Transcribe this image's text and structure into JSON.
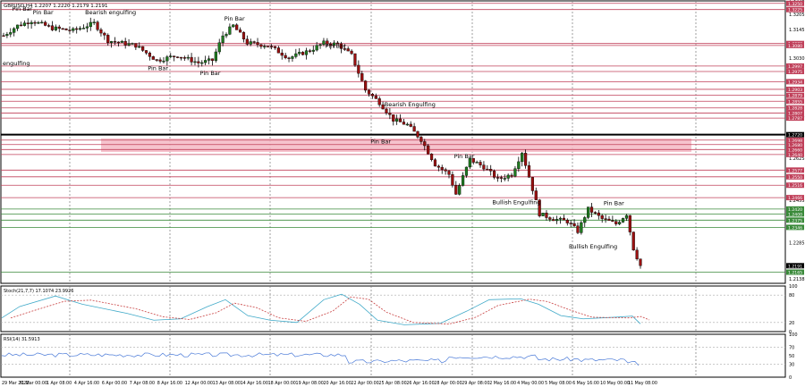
{
  "header": {
    "symbol": "GBPUSD,H4",
    "ohlc": "1.2207 1.2220 1.2179 1.2191"
  },
  "colors": {
    "bull": "#1f7a1f",
    "bear": "#9b1010",
    "frame": "#000000",
    "zone": "#f5b8c4",
    "hline_red": "#c0405a",
    "hline_green": "#3a8a3a",
    "stoch_main": "#3fa9c8",
    "stoch_signal": "#c84040",
    "rsi_line": "#4a7ad8"
  },
  "price_axis": {
    "labels": [
      "1.3225",
      "1.3205",
      "1.3145",
      "1.3030",
      "1.2795",
      "1.2625",
      "1.2455",
      "1.2285",
      "1.2138"
    ],
    "tags": [
      {
        "price": 1.325,
        "text": "1.3250",
        "kind": "red"
      },
      {
        "price": 1.3225,
        "text": "1.3225",
        "kind": "red"
      },
      {
        "price": 1.3088,
        "text": "1.3088",
        "kind": "red"
      },
      {
        "price": 1.308,
        "text": "1.3080",
        "kind": "red"
      },
      {
        "price": 1.2997,
        "text": "1.2997",
        "kind": "red"
      },
      {
        "price": 1.2975,
        "text": "1.2975",
        "kind": "red"
      },
      {
        "price": 1.2934,
        "text": "1.2934",
        "kind": "red"
      },
      {
        "price": 1.2903,
        "text": "1.2903",
        "kind": "red"
      },
      {
        "price": 1.2879,
        "text": "1.2879",
        "kind": "red"
      },
      {
        "price": 1.2855,
        "text": "1.2855",
        "kind": "red"
      },
      {
        "price": 1.2828,
        "text": "1.2828",
        "kind": "red"
      },
      {
        "price": 1.2807,
        "text": "1.2807",
        "kind": "red"
      },
      {
        "price": 1.2787,
        "text": "1.2787",
        "kind": "red"
      },
      {
        "price": 1.272,
        "text": "1.2720",
        "kind": "black"
      },
      {
        "price": 1.2698,
        "text": "1.2698",
        "kind": "red"
      },
      {
        "price": 1.268,
        "text": "1.2680",
        "kind": "red"
      },
      {
        "price": 1.266,
        "text": "1.2660",
        "kind": "red"
      },
      {
        "price": 1.264,
        "text": "1.2640",
        "kind": "red"
      },
      {
        "price": 1.2577,
        "text": "1.2577",
        "kind": "red"
      },
      {
        "price": 1.255,
        "text": "1.2550",
        "kind": "red"
      },
      {
        "price": 1.2516,
        "text": "1.2516",
        "kind": "red"
      },
      {
        "price": 1.2466,
        "text": "1.2466",
        "kind": "red"
      },
      {
        "price": 1.242,
        "text": "1.2420",
        "kind": "green"
      },
      {
        "price": 1.24,
        "text": "1.2400",
        "kind": "green"
      },
      {
        "price": 1.2375,
        "text": "1.2375",
        "kind": "green"
      },
      {
        "price": 1.2346,
        "text": "1.2346",
        "kind": "green"
      },
      {
        "price": 1.2191,
        "text": "1.2191",
        "kind": "black"
      },
      {
        "price": 1.2165,
        "text": "1.2165",
        "kind": "green"
      }
    ]
  },
  "annotations": [
    {
      "text": "Pin Bar",
      "price": 1.322,
      "bar": 5
    },
    {
      "text": "Pin Bar",
      "price": 1.3205,
      "bar": 11
    },
    {
      "text": "Bearish engulfing",
      "price": 1.3205,
      "bar": 26
    },
    {
      "text": "engulfing",
      "price": 1.3,
      "bar": 0
    },
    {
      "text": "Pin Bar",
      "price": 1.318,
      "bar": 66
    },
    {
      "text": "Pin Bar",
      "price": 1.298,
      "bar": 44
    },
    {
      "text": "Pin Bar",
      "price": 1.296,
      "bar": 59
    },
    {
      "text": "Pin Bar",
      "price": 1.307,
      "bar": 95
    },
    {
      "text": "Bearish Engulfing",
      "price": 1.2835,
      "bar": 112
    },
    {
      "text": "Pin Bar",
      "price": 1.2685,
      "bar": 108
    },
    {
      "text": "Pin Bar",
      "price": 1.2625,
      "bar": 132
    },
    {
      "text": "Bullish Engulfing",
      "price": 1.244,
      "bar": 143
    },
    {
      "text": "Pin Bar",
      "price": 1.2435,
      "bar": 175
    },
    {
      "text": "Bullish Engulfing",
      "price": 1.226,
      "bar": 165
    }
  ],
  "stoch": {
    "label": "Stoch(21,7,7) 17.1074 23.9926",
    "axis": [
      "100",
      "80",
      "20",
      "0"
    ]
  },
  "rsi": {
    "label": "RSI(14) 31.5913",
    "axis": [
      "100",
      "70",
      "50",
      "30",
      "0"
    ]
  },
  "time_axis": [
    "29 Mar 2022",
    "31 Mar 00:00",
    "1 Apr 08:00",
    "4 Apr 16:00",
    "6 Apr 00:00",
    "7 Apr 08:00",
    "8 Apr 16:00",
    "12 Apr 00:00",
    "13 Apr 08:00",
    "14 Apr 16:00",
    "18 Apr 00:00",
    "19 Apr 08:00",
    "20 Apr 16:00",
    "22 Apr 00:00",
    "25 Apr 08:00",
    "26 Apr 16:00",
    "28 Apr 00:00",
    "29 Apr 08:00",
    "2 May 16:00",
    "4 May 00:00",
    "5 May 08:00",
    "6 May 16:00",
    "10 May 00:00",
    "11 May 08:00"
  ]
}
